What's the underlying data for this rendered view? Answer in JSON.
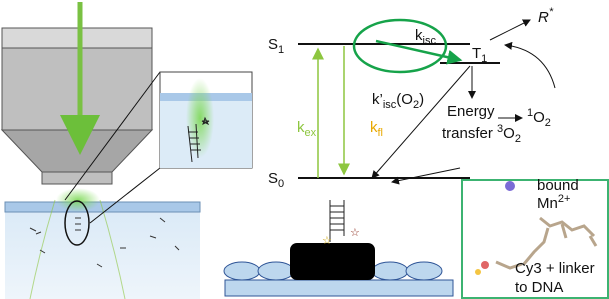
{
  "energy_diagram": {
    "s1": [
      "S",
      "1"
    ],
    "s0": [
      "S",
      "0"
    ],
    "t1": [
      "T",
      "1"
    ],
    "k_isc": [
      "k",
      "isc"
    ],
    "r_star": [
      "R",
      "*"
    ],
    "k_ex": [
      "k",
      "ex"
    ],
    "k_fl": [
      "k",
      "fl"
    ],
    "k_isc_o2": [
      "k’",
      "isc",
      "(O",
      "2",
      ")"
    ],
    "energy_transfer": {
      "line1": "Energy",
      "line2": [
        "transfer ",
        "3",
        "O",
        "2"
      ]
    },
    "singlet_oxygen": [
      "1",
      "O",
      "2"
    ]
  },
  "molecule_box": {
    "bound": "bound",
    "ion": [
      "Mn",
      "2+"
    ],
    "label_line1": "Cy3 + linker",
    "label_line2": "to DNA"
  }
}
